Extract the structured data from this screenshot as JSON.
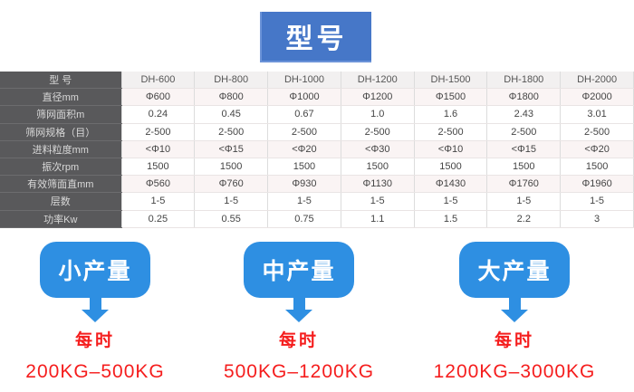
{
  "title": "型号",
  "table": {
    "header": [
      "型 号",
      "DH-600",
      "DH-800",
      "DH-1000",
      "DH-1200",
      "DH-1500",
      "DH-1800",
      "DH-2000"
    ],
    "rows": [
      {
        "label": "直径mm",
        "values": [
          "Φ600",
          "Φ800",
          "Φ1000",
          "Φ1200",
          "Φ1500",
          "Φ1800",
          "Φ2000"
        ]
      },
      {
        "label": "筛网面积m",
        "values": [
          "0.24",
          "0.45",
          "0.67",
          "1.0",
          "1.6",
          "2.43",
          "3.01"
        ]
      },
      {
        "label": "筛网规格（目）",
        "values": [
          "2-500",
          "2-500",
          "2-500",
          "2-500",
          "2-500",
          "2-500",
          "2-500"
        ]
      },
      {
        "label": "进料粒度mm",
        "values": [
          "<Φ10",
          "<Φ15",
          "<Φ20",
          "<Φ30",
          "<Φ10",
          "<Φ15",
          "<Φ20"
        ]
      },
      {
        "label": "振次rpm",
        "values": [
          "1500",
          "1500",
          "1500",
          "1500",
          "1500",
          "1500",
          "1500"
        ]
      },
      {
        "label": "有效筛面直mm",
        "values": [
          "Φ560",
          "Φ760",
          "Φ930",
          "Φ1130",
          "Φ1430",
          "Φ1760",
          "Φ1960"
        ]
      },
      {
        "label": "层数",
        "values": [
          "1-5",
          "1-5",
          "1-5",
          "1-5",
          "1-5",
          "1-5",
          "1-5"
        ]
      },
      {
        "label": "功率Kw",
        "values": [
          "0.25",
          "0.55",
          "0.75",
          "1.1",
          "1.5",
          "2.2",
          "3"
        ]
      }
    ]
  },
  "capacity_notes": [
    {
      "bubble": "小产量",
      "rate_label": "每时",
      "range": "200KG–500KG"
    },
    {
      "bubble": "中产量",
      "rate_label": "每时",
      "range": "500KG–1200KG"
    },
    {
      "bubble": "大产量",
      "rate_label": "每时",
      "range": "1200KG–3000KG"
    }
  ],
  "colors": {
    "title_blue": "#4677c8",
    "bubble_blue": "#2e8fe2",
    "red_text": "#f51d1d",
    "dark_column": "#59595b"
  }
}
